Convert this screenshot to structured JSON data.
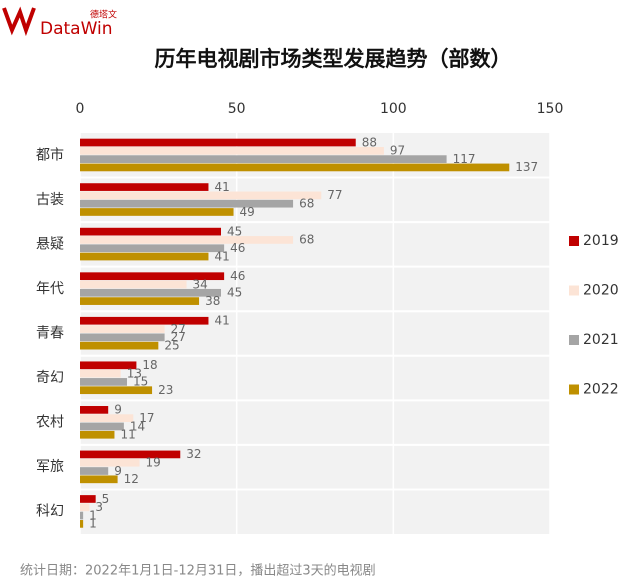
{
  "logo": {
    "name": "DataWin",
    "chinese": "德塔文"
  },
  "chart_data": {
    "type": "hbar",
    "title": "历年电视剧市场类型发展趋势（部数）",
    "note": "统计日期：2022年1月1日-12月31日，播出超过3天的电视剧",
    "categories": [
      "都市",
      "古装",
      "悬疑",
      "年代",
      "青春",
      "奇幻",
      "农村",
      "军旅",
      "科幻"
    ],
    "series": [
      {
        "name": "2019",
        "color": "#c00000",
        "values": [
          88,
          41,
          45,
          46,
          41,
          18,
          9,
          32,
          5
        ]
      },
      {
        "name": "2020",
        "color": "#fce4d6",
        "values": [
          97,
          77,
          68,
          34,
          27,
          13,
          17,
          19,
          3
        ]
      },
      {
        "name": "2021",
        "color": "#a5a5a5",
        "values": [
          117,
          68,
          46,
          45,
          27,
          15,
          14,
          9,
          1
        ]
      },
      {
        "name": "2022",
        "color": "#bf9000",
        "values": [
          137,
          49,
          41,
          38,
          25,
          23,
          11,
          12,
          1
        ]
      }
    ],
    "xlim": [
      0,
      150
    ],
    "xticks": [
      0,
      50,
      100,
      150
    ],
    "grid": true,
    "legend": "right"
  }
}
